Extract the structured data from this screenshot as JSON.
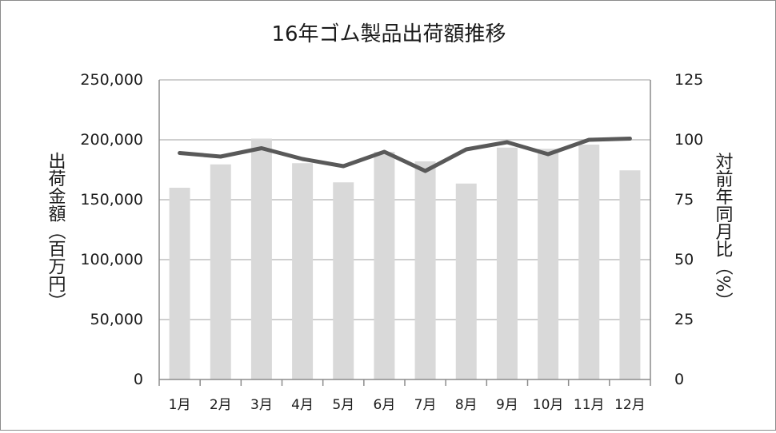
{
  "chart_data": {
    "type": "bar",
    "title": "16年ゴム製品出荷額推移",
    "categories": [
      "1月",
      "2月",
      "3月",
      "4月",
      "5月",
      "6月",
      "7月",
      "8月",
      "9月",
      "10月",
      "11月",
      "12月"
    ],
    "series": [
      {
        "name": "",
        "type": "bar",
        "axis": "left",
        "values": [
          160000,
          179500,
          201000,
          180500,
          164500,
          190000,
          182000,
          163500,
          193500,
          192500,
          196000,
          174500
        ]
      },
      {
        "name": "",
        "type": "line",
        "axis": "right",
        "values": [
          94.5,
          93,
          96.5,
          92,
          89,
          95,
          87,
          96,
          99,
          94,
          100,
          100.5
        ]
      }
    ],
    "ylabel_left": "出荷金額（百万円）",
    "ylabel_right": "対前年同月比（%）",
    "ylim_left": [
      0,
      250000
    ],
    "ylim_right": [
      0,
      125
    ],
    "yticks_left": [
      "0",
      "50,000",
      "100,000",
      "150,000",
      "200,000",
      "250,000"
    ],
    "yticks_right": [
      "0",
      "25",
      "50",
      "75",
      "100",
      "125"
    ],
    "grid": true,
    "legend": "none",
    "colors": {
      "bar": "#d9d9d9",
      "line": "#595959",
      "grid": "#bfbfbf",
      "axis": "#8c8c8c"
    }
  }
}
